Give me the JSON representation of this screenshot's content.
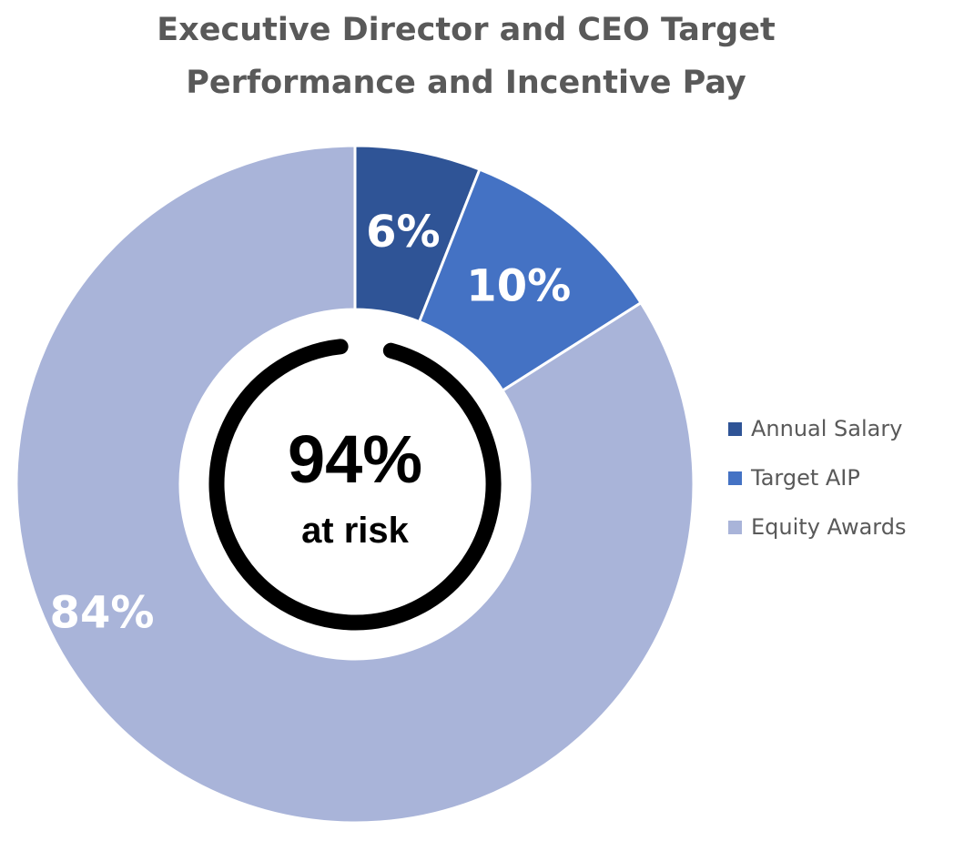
{
  "chart_data": {
    "type": "pie",
    "title": [
      "Executive Director and CEO Target",
      "Performance and Incentive Pay"
    ],
    "categories": [
      "Annual Salary",
      "Target AIP",
      "Equity Awards"
    ],
    "values": [
      6,
      10,
      84
    ],
    "value_labels": [
      "6%",
      "10%",
      "84%"
    ],
    "unit": "%",
    "colors": [
      "#2f5496",
      "#4472c4",
      "#a9b4d9"
    ],
    "legend_position": "right",
    "center_annotation": {
      "value": "94%",
      "caption": "at risk",
      "ring_color": "#000000"
    }
  }
}
